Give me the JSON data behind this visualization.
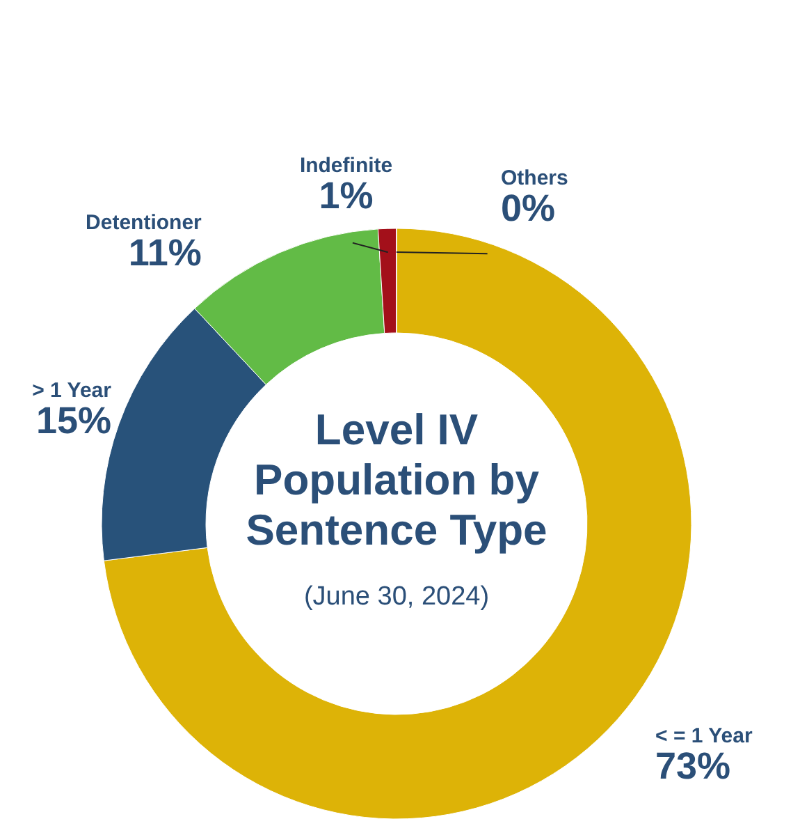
{
  "chart_data": {
    "type": "donut",
    "title": "Level IV Population by Sentence Type",
    "subtitle": "(June 30, 2024)",
    "categories": [
      "< = 1 Year",
      "> 1 Year",
      "Detentioner",
      "Indefinite",
      "Others"
    ],
    "values": [
      73,
      15,
      11,
      1,
      0
    ],
    "value_labels": [
      "73%",
      "15%",
      "11%",
      "1%",
      "0%"
    ],
    "colors": [
      "#ddb307",
      "#28527a",
      "#62bb46",
      "#a3101a",
      "#c8a040"
    ]
  }
}
